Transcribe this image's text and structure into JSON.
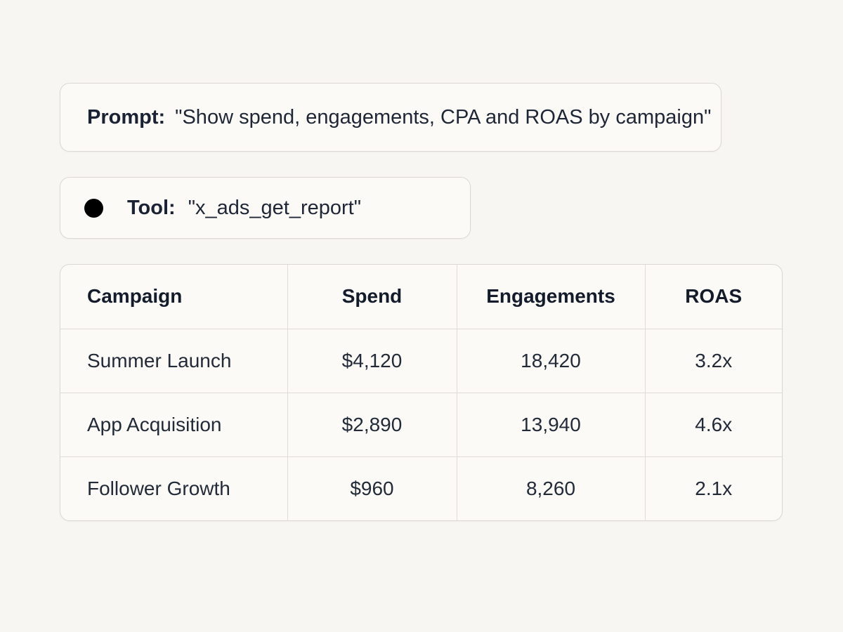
{
  "prompt": {
    "label": "Prompt:",
    "text": "\"Show spend, engagements, CPA and ROAS by campaign\""
  },
  "tool": {
    "label": "Tool:",
    "name": "\"x_ads_get_report\""
  },
  "report_table": {
    "headers": [
      "Campaign",
      "Spend",
      "Engagements",
      "ROAS"
    ],
    "rows": [
      [
        "Summer Launch",
        "$4,120",
        "18,420",
        "3.2x"
      ],
      [
        "App Acquisition",
        "$2,890",
        "13,940",
        "4.6x"
      ],
      [
        "Follower Growth",
        "$960",
        "8,260",
        "2.1x"
      ]
    ]
  },
  "colors": {
    "background": "#f8f6f2",
    "card": "#fbfaf7",
    "border": "#dcd9d3",
    "text": "#1a2233",
    "status_dot": "#000000"
  }
}
